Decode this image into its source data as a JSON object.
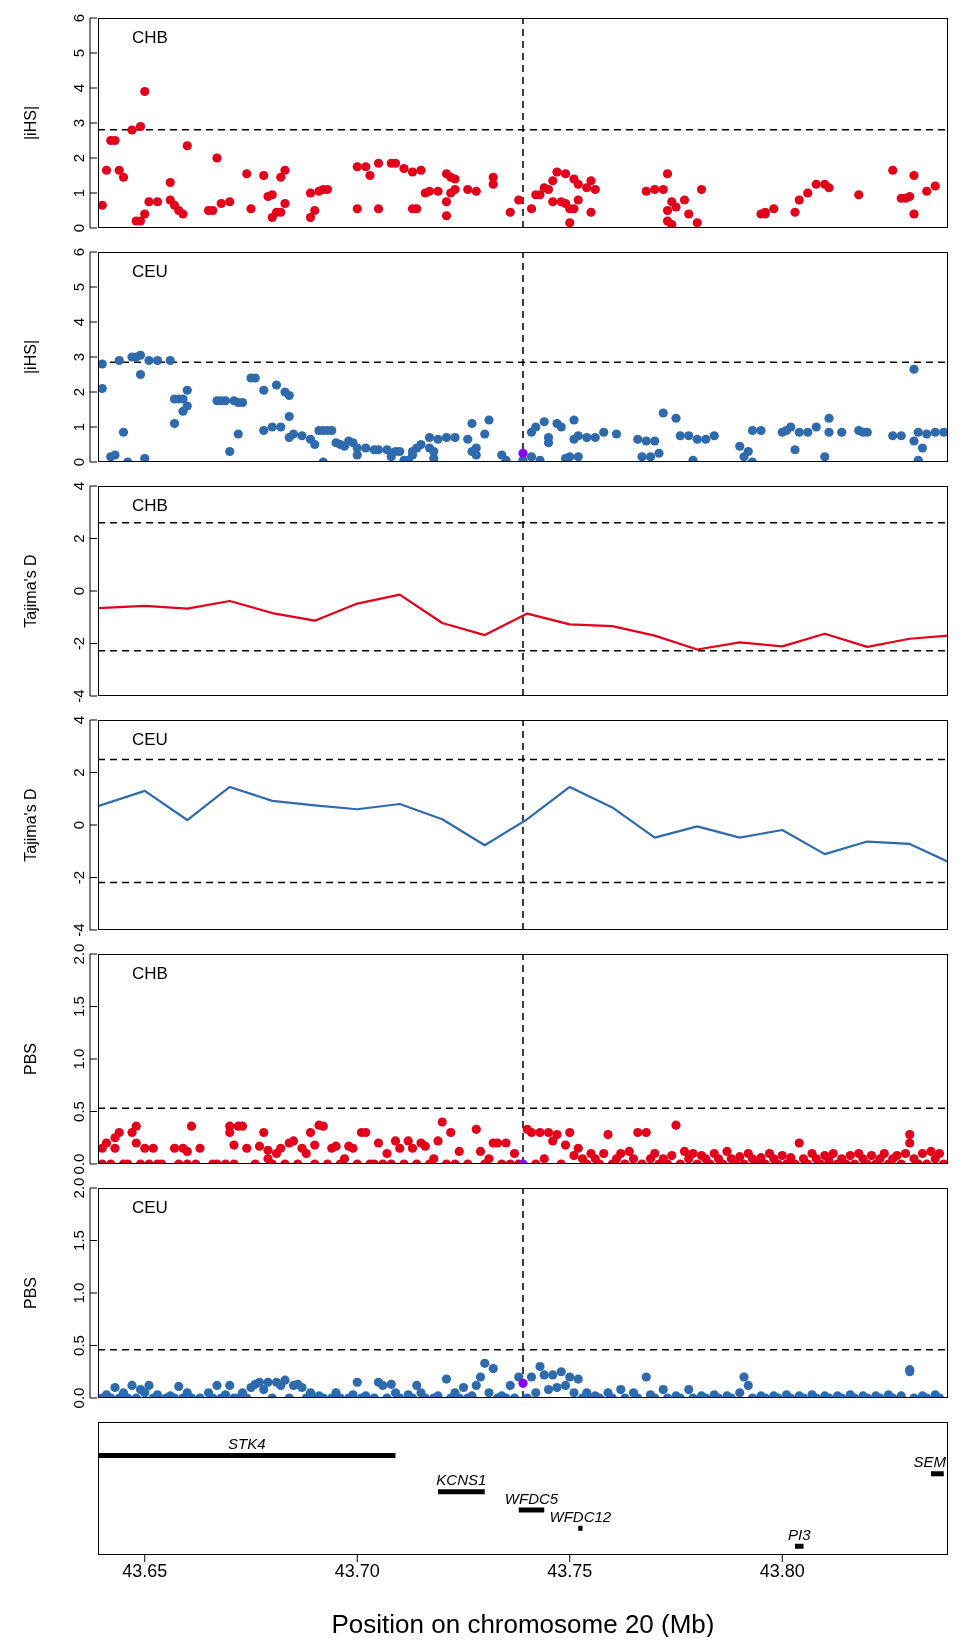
{
  "chart_data": [
    {
      "type": "scatter",
      "ylabel": "|iHS|",
      "annotations": [
        "CHB"
      ],
      "marker": "circle",
      "tick_labels": "y",
      "xlim": [
        43.639,
        43.839
      ],
      "ylim": [
        0,
        6
      ],
      "yticks": [
        0,
        1,
        2,
        3,
        4,
        5,
        6
      ],
      "ref_lines": [
        {
          "axis": "y",
          "value": 2.81,
          "line_style": "dashed",
          "color": "#000000"
        },
        {
          "axis": "x",
          "value": 43.739,
          "line_style": "dashed",
          "color": "#000000"
        }
      ],
      "series": [
        {
          "color": "#e2001a",
          "x": [
            43.64,
            43.641,
            43.642,
            43.643,
            43.644,
            43.645,
            43.647,
            43.648,
            43.649,
            43.649,
            43.65,
            43.65,
            43.651,
            43.653,
            43.656,
            43.656,
            43.657,
            43.658,
            43.659,
            43.66,
            43.665,
            43.666,
            43.667,
            43.668,
            43.67,
            43.674,
            43.675,
            43.678,
            43.679,
            43.68,
            43.68,
            43.681,
            43.682,
            43.682,
            43.683,
            43.683,
            43.689,
            43.689,
            43.69,
            43.691,
            43.692,
            43.693,
            43.7,
            43.7,
            43.702,
            43.703,
            43.705,
            43.705,
            43.708,
            43.709,
            43.711,
            43.713,
            43.713,
            43.714,
            43.715,
            43.716,
            43.717,
            43.719,
            43.721,
            43.721,
            43.721,
            43.722,
            43.722,
            43.723,
            43.723,
            43.726,
            43.728,
            43.732,
            43.732,
            43.736,
            43.738,
            43.741,
            43.742,
            43.743,
            43.744,
            43.745,
            43.746,
            43.746,
            43.747,
            43.748,
            43.749,
            43.749,
            43.75,
            43.75,
            43.751,
            43.751,
            43.752,
            43.752,
            43.754,
            43.755,
            43.756,
            43.755,
            43.768,
            43.77,
            43.772,
            43.773,
            43.773,
            43.773,
            43.774,
            43.774,
            43.775,
            43.777,
            43.778,
            43.78,
            43.781,
            43.795,
            43.796,
            43.796,
            43.798,
            43.803,
            43.804,
            43.806,
            43.808,
            43.81,
            43.811,
            43.818,
            43.826,
            43.828,
            43.829,
            43.83,
            43.831,
            43.831,
            43.834,
            43.836
          ],
          "values": [
            0.65,
            1.65,
            2.5,
            2.5,
            1.65,
            1.45,
            2.8,
            0.2,
            0.2,
            2.9,
            0.4,
            3.9,
            0.75,
            0.75,
            1.3,
            0.8,
            0.65,
            0.5,
            0.4,
            2.35,
            0.5,
            0.5,
            2.0,
            0.7,
            0.75,
            1.55,
            0.55,
            1.5,
            0.9,
            0.3,
            0.95,
            0.45,
            0.45,
            1.45,
            0.7,
            1.65,
            0.3,
            1.0,
            0.5,
            1.05,
            1.1,
            1.1,
            0.55,
            1.75,
            1.75,
            1.5,
            0.55,
            1.85,
            1.85,
            1.85,
            1.7,
            0.55,
            1.6,
            0.55,
            1.65,
            1.0,
            1.05,
            1.05,
            1.55,
            0.35,
            0.75,
            1.45,
            1.0,
            1.4,
            1.1,
            1.1,
            1.05,
            1.45,
            1.25,
            0.45,
            0.8,
            0.55,
            0.95,
            0.95,
            1.15,
            1.1,
            0.75,
            1.35,
            1.6,
            0.75,
            1.55,
            0.7,
            0.55,
            0.15,
            1.4,
            0.55,
            0.8,
            1.25,
            1.15,
            1.35,
            1.1,
            0.45,
            1.05,
            1.1,
            1.1,
            0.2,
            1.55,
            0.5,
            0.1,
            0.75,
            0.6,
            0.8,
            0.4,
            0.15,
            1.1,
            0.4,
            0.4,
            0.45,
            0.55,
            0.45,
            0.8,
            1.0,
            1.25,
            1.25,
            1.15,
            0.95,
            1.65,
            0.85,
            0.85,
            0.9,
            0.4,
            1.5,
            1.05,
            1.2
          ]
        }
      ]
    },
    {
      "type": "scatter",
      "ylabel": "|iHS|",
      "annotations": [
        "CEU"
      ],
      "marker": "circle",
      "tick_labels": "y",
      "xlim": [
        43.639,
        43.839
      ],
      "ylim": [
        0,
        6
      ],
      "yticks": [
        0,
        1,
        2,
        3,
        4,
        5,
        6
      ],
      "ref_lines": [
        {
          "axis": "y",
          "value": 2.85,
          "line_style": "dashed",
          "color": "#000000"
        },
        {
          "axis": "x",
          "value": 43.739,
          "line_style": "dashed",
          "color": "#000000"
        }
      ],
      "series": [
        {
          "color": "#2f6aac",
          "x": [
            43.64,
            43.64,
            43.642,
            43.643,
            43.644,
            43.645,
            43.646,
            43.647,
            43.648,
            43.649,
            43.649,
            43.65,
            43.651,
            43.653,
            43.656,
            43.657,
            43.657,
            43.658,
            43.659,
            43.659,
            43.66,
            43.66,
            43.667,
            43.668,
            43.669,
            43.67,
            43.671,
            43.672,
            43.672,
            43.673,
            43.675,
            43.676,
            43.678,
            43.678,
            43.68,
            43.681,
            43.682,
            43.683,
            43.684,
            43.684,
            43.684,
            43.685,
            43.687,
            43.689,
            43.69,
            43.691,
            43.692,
            43.692,
            43.693,
            43.694,
            43.695,
            43.696,
            43.697,
            43.698,
            43.699,
            43.7,
            43.7,
            43.702,
            43.704,
            43.705,
            43.707,
            43.708,
            43.708,
            43.709,
            43.71,
            43.711,
            43.712,
            43.713,
            43.713,
            43.714,
            43.715,
            43.717,
            43.717,
            43.718,
            43.718,
            43.719,
            43.721,
            43.723,
            43.726,
            43.727,
            43.727,
            43.728,
            43.728,
            43.73,
            43.731,
            43.734,
            43.735,
            43.739,
            43.741,
            43.741,
            43.742,
            43.743,
            43.744,
            43.745,
            43.745,
            43.747,
            43.748,
            43.749,
            43.75,
            43.751,
            43.751,
            43.752,
            43.752,
            43.754,
            43.756,
            43.758,
            43.761,
            43.766,
            43.767,
            43.768,
            43.769,
            43.77,
            43.771,
            43.772,
            43.775,
            43.776,
            43.778,
            43.779,
            43.78,
            43.782,
            43.784,
            43.79,
            43.791,
            43.792,
            43.793,
            43.793,
            43.795,
            43.8,
            43.801,
            43.802,
            43.803,
            43.804,
            43.806,
            43.808,
            43.81,
            43.811,
            43.811,
            43.814,
            43.818,
            43.819,
            43.82,
            43.826,
            43.828,
            43.831,
            43.831,
            43.832,
            43.832,
            43.833,
            43.834,
            43.836,
            43.838
          ],
          "values": [
            2.1,
            2.8,
            0.15,
            0.2,
            2.9,
            0.85,
            0.0,
            3.0,
            3.0,
            2.5,
            3.05,
            0.1,
            2.9,
            2.9,
            2.9,
            1.1,
            1.8,
            1.8,
            1.45,
            1.8,
            2.05,
            1.6,
            1.75,
            1.75,
            1.75,
            0.3,
            1.75,
            0.8,
            1.7,
            1.7,
            2.4,
            2.4,
            0.9,
            2.05,
            1.0,
            2.2,
            1.0,
            2.0,
            1.9,
            0.7,
            1.3,
            0.8,
            0.75,
            0.65,
            0.5,
            0.9,
            0.9,
            0.0,
            0.9,
            0.9,
            0.55,
            0.5,
            0.45,
            0.6,
            0.55,
            0.4,
            0.2,
            0.4,
            0.35,
            0.35,
            0.35,
            0.25,
            0.15,
            0.3,
            0.3,
            0.05,
            0.05,
            0.3,
            0.2,
            0.4,
            0.5,
            0.7,
            0.4,
            0.1,
            0.3,
            0.65,
            0.7,
            0.7,
            0.65,
            1.1,
            0.3,
            0.4,
            0.2,
            0.8,
            1.2,
            0.2,
            0.05,
            0.05,
            0.85,
            0.15,
            1.0,
            0.05,
            1.15,
            0.55,
            0.7,
            1.1,
            1.0,
            0.1,
            0.15,
            0.65,
            1.2,
            0.75,
            0.15,
            0.7,
            0.7,
            0.85,
            0.8,
            0.65,
            0.15,
            0.6,
            0.15,
            0.6,
            0.25,
            1.4,
            1.25,
            0.75,
            0.75,
            0.05,
            0.65,
            0.65,
            0.75,
            0.45,
            0.15,
            0.3,
            0.0,
            0.9,
            0.9,
            0.85,
            0.9,
            1.0,
            0.35,
            0.85,
            0.85,
            1.0,
            0.15,
            1.25,
            0.85,
            0.85,
            0.9,
            0.85,
            0.85,
            0.75,
            0.75,
            2.65,
            0.6,
            0.85,
            0.05,
            0.4,
            0.8,
            0.85,
            0.85
          ]
        },
        {
          "color": "#8a00ff",
          "x": [
            43.739
          ],
          "values": [
            0.25
          ]
        }
      ]
    },
    {
      "type": "line",
      "ylabel": "Tajima's D",
      "annotations": [
        "CHB"
      ],
      "line_style": "solid",
      "tick_labels": "y",
      "xlim": [
        43.639,
        43.839
      ],
      "ylim": [
        -4,
        4
      ],
      "yticks": [
        -4,
        -2,
        0,
        2,
        4
      ],
      "ref_lines": [
        {
          "axis": "y",
          "value": 2.6,
          "line_style": "dashed",
          "color": "#000000"
        },
        {
          "axis": "y",
          "value": -2.28,
          "line_style": "dashed",
          "color": "#000000"
        },
        {
          "axis": "x",
          "value": 43.739,
          "line_style": "dashed",
          "color": "#000000"
        }
      ],
      "series": [
        {
          "color": "#e2001a",
          "x": [
            43.639,
            43.65,
            43.66,
            43.67,
            43.68,
            43.69,
            43.7,
            43.71,
            43.72,
            43.73,
            43.74,
            43.75,
            43.76,
            43.77,
            43.78,
            43.79,
            43.8,
            43.81,
            43.82,
            43.83,
            43.839
          ],
          "values": [
            -0.65,
            -0.57,
            -0.67,
            -0.38,
            -0.84,
            -1.13,
            -0.48,
            -0.14,
            -1.22,
            -1.68,
            -0.86,
            -1.27,
            -1.34,
            -1.7,
            -2.23,
            -1.96,
            -2.11,
            -1.63,
            -2.13,
            -1.82,
            -1.7
          ]
        }
      ]
    },
    {
      "type": "line",
      "ylabel": "Tajima's D",
      "annotations": [
        "CEU"
      ],
      "line_style": "solid",
      "tick_labels": "y",
      "xlim": [
        43.639,
        43.839
      ],
      "ylim": [
        -4,
        4
      ],
      "yticks": [
        -4,
        -2,
        0,
        2,
        4
      ],
      "ref_lines": [
        {
          "axis": "y",
          "value": 2.5,
          "line_style": "dashed",
          "color": "#000000"
        },
        {
          "axis": "y",
          "value": -2.19,
          "line_style": "dashed",
          "color": "#000000"
        },
        {
          "axis": "x",
          "value": 43.739,
          "line_style": "dashed",
          "color": "#000000"
        }
      ],
      "series": [
        {
          "color": "#2f6aac",
          "x": [
            43.639,
            43.65,
            43.66,
            43.67,
            43.68,
            43.69,
            43.7,
            43.71,
            43.72,
            43.73,
            43.74,
            43.75,
            43.76,
            43.77,
            43.78,
            43.79,
            43.8,
            43.81,
            43.82,
            43.83,
            43.839
          ],
          "values": [
            0.72,
            1.3,
            0.19,
            1.45,
            0.92,
            0.75,
            0.6,
            0.8,
            0.22,
            -0.77,
            0.22,
            1.45,
            0.67,
            -0.48,
            -0.05,
            -0.48,
            -0.19,
            -1.11,
            -0.63,
            -0.72,
            -1.4
          ]
        }
      ]
    },
    {
      "type": "scatter",
      "ylabel": "PBS",
      "annotations": [
        "CHB"
      ],
      "marker": "circle",
      "tick_labels": "y",
      "xlim": [
        43.639,
        43.839
      ],
      "ylim": [
        0,
        2
      ],
      "yticks": [
        {
          "value": 0,
          "label": "0.0"
        },
        0.5,
        {
          "value": 1,
          "label": "1.0"
        },
        1.5,
        {
          "value": 2,
          "label": "2.0"
        }
      ],
      "ref_lines": [
        {
          "axis": "y",
          "value": 0.53,
          "line_style": "dashed",
          "color": "#000000"
        },
        {
          "axis": "x",
          "value": 43.739,
          "line_style": "dashed",
          "color": "#000000"
        }
      ],
      "series": [
        {
          "color": "#e2001a",
          "x": [
            43.64,
            43.64,
            43.641,
            43.642,
            43.643,
            43.643,
            43.644,
            43.645,
            43.646,
            43.647,
            43.648,
            43.648,
            43.649,
            43.65,
            43.651,
            43.652,
            43.653,
            43.654,
            43.657,
            43.658,
            43.659,
            43.66,
            43.66,
            43.661,
            43.662,
            43.663,
            43.666,
            43.667,
            43.669,
            43.67,
            43.67,
            43.671,
            43.671,
            43.672,
            43.673,
            43.674,
            43.676,
            43.677,
            43.678,
            43.679,
            43.679,
            43.68,
            43.681,
            43.682,
            43.683,
            43.684,
            43.685,
            43.686,
            43.687,
            43.688,
            43.689,
            43.69,
            43.69,
            43.691,
            43.692,
            43.693,
            43.694,
            43.695,
            43.696,
            43.697,
            43.698,
            43.699,
            43.7,
            43.701,
            43.702,
            43.703,
            43.704,
            43.705,
            43.706,
            43.707,
            43.708,
            43.709,
            43.71,
            43.711,
            43.712,
            43.713,
            43.714,
            43.715,
            43.716,
            43.717,
            43.718,
            43.719,
            43.72,
            43.721,
            43.722,
            43.723,
            43.724,
            43.726,
            43.728,
            43.729,
            43.73,
            43.731,
            43.732,
            43.733,
            43.734,
            43.735,
            43.736,
            43.737,
            43.738,
            43.74,
            43.741,
            43.742,
            43.743,
            43.744,
            43.745,
            43.746,
            43.747,
            43.748,
            43.749,
            43.75,
            43.751,
            43.752,
            43.753,
            43.754,
            43.755,
            43.756,
            43.757,
            43.758,
            43.759,
            43.76,
            43.761,
            43.762,
            43.763,
            43.764,
            43.765,
            43.766,
            43.767,
            43.768,
            43.769,
            43.77,
            43.771,
            43.772,
            43.773,
            43.774,
            43.775,
            43.776,
            43.777,
            43.778,
            43.779,
            43.78,
            43.781,
            43.782,
            43.783,
            43.784,
            43.785,
            43.786,
            43.787,
            43.788,
            43.789,
            43.79,
            43.791,
            43.792,
            43.793,
            43.794,
            43.795,
            43.796,
            43.797,
            43.798,
            43.799,
            43.8,
            43.801,
            43.802,
            43.803,
            43.804,
            43.805,
            43.806,
            43.807,
            43.808,
            43.809,
            43.81,
            43.811,
            43.812,
            43.813,
            43.814,
            43.815,
            43.816,
            43.817,
            43.818,
            43.819,
            43.82,
            43.821,
            43.822,
            43.823,
            43.824,
            43.825,
            43.826,
            43.827,
            43.828,
            43.829,
            43.83,
            43.83,
            43.831,
            43.832,
            43.833,
            43.834,
            43.835,
            43.836,
            43.837,
            43.838
          ],
          "values": [
            0.15,
            0.0,
            0.2,
            0.0,
            0.25,
            0.15,
            0.3,
            0.0,
            0.0,
            0.3,
            0.36,
            0.2,
            0.0,
            0.15,
            0.0,
            0.15,
            0.0,
            0.0,
            0.15,
            0.0,
            0.15,
            0.0,
            0.12,
            0.36,
            0.0,
            0.15,
            0.0,
            0.0,
            0.0,
            0.36,
            0.3,
            0.0,
            0.18,
            0.36,
            0.36,
            0.15,
            0.0,
            0.17,
            0.3,
            0.13,
            0.05,
            0.0,
            0.1,
            0.15,
            0.0,
            0.2,
            0.22,
            0.0,
            0.15,
            0.1,
            0.3,
            0.0,
            0.18,
            0.37,
            0.36,
            0.0,
            0.15,
            0.17,
            0.0,
            0.05,
            0.17,
            0.15,
            0.0,
            0.3,
            0.3,
            0.0,
            0.0,
            0.2,
            0.0,
            0.1,
            0.0,
            0.22,
            0.15,
            0.0,
            0.22,
            0.15,
            0.0,
            0.2,
            0.17,
            0.0,
            0.05,
            0.22,
            0.4,
            0.0,
            0.3,
            0.0,
            0.12,
            0.0,
            0.33,
            0.12,
            0.0,
            0.05,
            0.2,
            0.2,
            0.0,
            0.2,
            0.0,
            0.1,
            0.0,
            0.33,
            0.3,
            0.0,
            0.3,
            0.05,
            0.3,
            0.22,
            0.28,
            0.0,
            0.18,
            0.3,
            0.08,
            0.15,
            0.05,
            0.0,
            0.1,
            0.05,
            0.0,
            0.1,
            0.28,
            0.0,
            0.05,
            0.1,
            0.0,
            0.12,
            0.05,
            0.3,
            0.0,
            0.3,
            0.05,
            0.1,
            0.0,
            0.05,
            0.0,
            0.08,
            0.37,
            0.0,
            0.12,
            0.05,
            0.1,
            0.0,
            0.08,
            0.05,
            0.0,
            0.1,
            0.05,
            0.0,
            0.12,
            0.05,
            0.0,
            0.07,
            0.0,
            0.1,
            0.05,
            0.0,
            0.06,
            0.0,
            0.1,
            0.05,
            0.0,
            0.08,
            0.0,
            0.06,
            0.0,
            0.2,
            0.05,
            0.0,
            0.1,
            0.05,
            0.0,
            0.08,
            0.03,
            0.1,
            0.0,
            0.05,
            0.0,
            0.08,
            0.0,
            0.1,
            0.05,
            0.0,
            0.08,
            0.0,
            0.05,
            0.1,
            0.0,
            0.05,
            0.08,
            0.0,
            0.1,
            0.28,
            0.2,
            0.05,
            0.0,
            0.1,
            0.0,
            0.12,
            0.05,
            0.1,
            0.0
          ]
        },
        {
          "color": "#8a00ff",
          "x": [
            43.739
          ],
          "values": [
            0.0
          ]
        }
      ]
    },
    {
      "type": "scatter",
      "ylabel": "PBS",
      "annotations": [
        "CEU"
      ],
      "marker": "circle",
      "tick_labels": "y",
      "xlim": [
        43.639,
        43.839
      ],
      "ylim": [
        0,
        2
      ],
      "yticks": [
        {
          "value": 0,
          "label": "0.0"
        },
        0.5,
        {
          "value": 1,
          "label": "1.0"
        },
        1.5,
        {
          "value": 2,
          "label": "2.0"
        }
      ],
      "ref_lines": [
        {
          "axis": "y",
          "value": 0.46,
          "line_style": "dashed",
          "color": "#000000"
        },
        {
          "axis": "x",
          "value": 43.739,
          "line_style": "dashed",
          "color": "#000000"
        }
      ],
      "series": [
        {
          "color": "#2f6aac",
          "x": [
            43.64,
            43.641,
            43.642,
            43.643,
            43.644,
            43.645,
            43.646,
            43.647,
            43.648,
            43.649,
            43.65,
            43.651,
            43.652,
            43.653,
            43.655,
            43.656,
            43.657,
            43.658,
            43.659,
            43.66,
            43.661,
            43.663,
            43.665,
            43.666,
            43.667,
            43.668,
            43.669,
            43.67,
            43.671,
            43.672,
            43.673,
            43.674,
            43.675,
            43.676,
            43.677,
            43.678,
            43.679,
            43.68,
            43.681,
            43.682,
            43.683,
            43.684,
            43.685,
            43.686,
            43.687,
            43.688,
            43.689,
            43.69,
            43.691,
            43.692,
            43.694,
            43.695,
            43.696,
            43.698,
            43.699,
            43.7,
            43.701,
            43.702,
            43.704,
            43.705,
            43.706,
            43.707,
            43.708,
            43.709,
            43.71,
            43.712,
            43.713,
            43.714,
            43.715,
            43.716,
            43.718,
            43.719,
            43.721,
            43.722,
            43.723,
            43.724,
            43.725,
            43.726,
            43.727,
            43.728,
            43.729,
            43.73,
            43.731,
            43.732,
            43.733,
            43.734,
            43.735,
            43.736,
            43.737,
            43.738,
            43.74,
            43.741,
            43.742,
            43.743,
            43.744,
            43.745,
            43.746,
            43.747,
            43.748,
            43.749,
            43.75,
            43.751,
            43.752,
            43.753,
            43.754,
            43.755,
            43.756,
            43.757,
            43.759,
            43.76,
            43.762,
            43.763,
            43.765,
            43.766,
            43.768,
            43.769,
            43.77,
            43.772,
            43.773,
            43.775,
            43.776,
            43.778,
            43.779,
            43.781,
            43.782,
            43.784,
            43.785,
            43.787,
            43.788,
            43.79,
            43.791,
            43.792,
            43.793,
            43.795,
            43.796,
            43.798,
            43.799,
            43.801,
            43.802,
            43.804,
            43.805,
            43.807,
            43.808,
            43.81,
            43.811,
            43.813,
            43.814,
            43.816,
            43.817,
            43.819,
            43.82,
            43.822,
            43.823,
            43.825,
            43.826,
            43.828,
            43.83,
            43.83,
            43.831,
            43.833,
            43.834,
            43.836,
            43.837
          ],
          "values": [
            0.0,
            0.03,
            0.0,
            0.1,
            0.0,
            0.05,
            0.0,
            0.12,
            0.0,
            0.08,
            0.05,
            0.12,
            0.0,
            0.03,
            0.0,
            0.02,
            0.0,
            0.11,
            0.0,
            0.05,
            0.0,
            0.0,
            0.05,
            0.0,
            0.12,
            0.0,
            0.03,
            0.12,
            0.0,
            0.0,
            0.05,
            0.0,
            0.1,
            0.13,
            0.15,
            0.08,
            0.15,
            0.0,
            0.15,
            0.12,
            0.17,
            0.0,
            0.12,
            0.13,
            0.1,
            0.0,
            0.05,
            0.0,
            0.02,
            0.0,
            0.0,
            0.05,
            0.0,
            0.0,
            0.03,
            0.15,
            0.0,
            0.02,
            0.0,
            0.15,
            0.12,
            0.0,
            0.13,
            0.05,
            0.0,
            0.03,
            0.0,
            0.12,
            0.05,
            0.0,
            0.0,
            0.02,
            0.18,
            0.0,
            0.05,
            0.0,
            0.1,
            0.0,
            0.02,
            0.12,
            0.2,
            0.33,
            0.05,
            0.28,
            0.0,
            0.02,
            0.0,
            0.12,
            0.0,
            0.2,
            0.0,
            0.2,
            0.05,
            0.3,
            0.22,
            0.08,
            0.22,
            0.1,
            0.25,
            0.12,
            0.2,
            0.05,
            0.18,
            0.0,
            0.05,
            0.0,
            0.02,
            0.0,
            0.05,
            0.0,
            0.08,
            0.0,
            0.05,
            0.0,
            0.2,
            0.03,
            0.0,
            0.08,
            0.0,
            0.02,
            0.0,
            0.08,
            0.0,
            0.02,
            0.0,
            0.03,
            0.0,
            0.02,
            0.0,
            0.05,
            0.2,
            0.12,
            0.0,
            0.02,
            0.0,
            0.02,
            0.0,
            0.03,
            0.0,
            0.02,
            0.0,
            0.03,
            0.0,
            0.02,
            0.0,
            0.02,
            0.0,
            0.03,
            0.0,
            0.02,
            0.0,
            0.02,
            0.0,
            0.03,
            0.0,
            0.02,
            0.27,
            0.25,
            0.0,
            0.02,
            0.0,
            0.03,
            0.0
          ]
        },
        {
          "color": "#8a00ff",
          "x": [
            43.739
          ],
          "values": [
            0.14
          ]
        }
      ]
    },
    {
      "type": "bar",
      "orientation": "horizontal",
      "xlabel": "Position on chromosome 20 (Mb)",
      "tick_labels": "x",
      "xlim": [
        43.639,
        43.839
      ],
      "xticks": [
        {
          "value": 43.65,
          "label": "43.65"
        },
        {
          "value": 43.7,
          "label": "43.70"
        },
        {
          "value": 43.75,
          "label": "43.75"
        },
        {
          "value": 43.8,
          "label": "43.80"
        }
      ],
      "categories": [
        null,
        null,
        null,
        null,
        null,
        null
      ],
      "series": [
        {
          "color": "#000000",
          "base": [
            43.639,
            43.835,
            43.719,
            43.738,
            43.752,
            43.803
          ],
          "values": [
            0.07,
            0.003,
            0.011,
            0.006,
            0.001,
            0.002
          ],
          "value_labels": [
            "STK4",
            "SEM",
            "KCNS1",
            "WFDC5",
            "WFDC12",
            "PI3"
          ]
        }
      ]
    }
  ]
}
